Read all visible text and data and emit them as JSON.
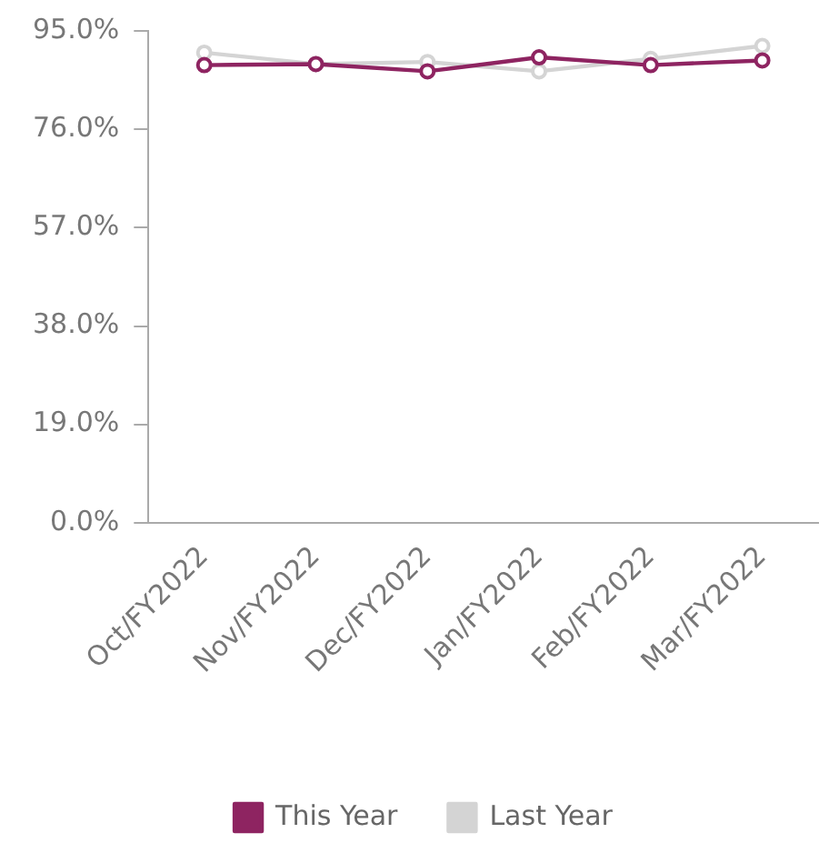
{
  "chart_data": {
    "type": "line",
    "categories": [
      "Oct/FY2022",
      "Nov/FY2022",
      "Dec/FY2022",
      "Jan/FY2022",
      "Feb/FY2022",
      "Mar/FY2022"
    ],
    "series": [
      {
        "name": "This Year",
        "color": "#8e2461",
        "values": [
          88.4,
          88.6,
          87.2,
          89.9,
          88.4,
          89.3
        ]
      },
      {
        "name": "Last Year",
        "color": "#d4d4d4",
        "values": [
          90.8,
          88.6,
          89.0,
          87.2,
          89.6,
          92.1
        ]
      }
    ],
    "ylim": [
      0,
      95
    ],
    "yticks": [
      {
        "value": 0,
        "label": "0.0%"
      },
      {
        "value": 19,
        "label": "19.0%"
      },
      {
        "value": 38,
        "label": "38.0%"
      },
      {
        "value": 57,
        "label": "57.0%"
      },
      {
        "value": 76,
        "label": "76.0%"
      },
      {
        "value": 95,
        "label": "95.0%"
      }
    ],
    "grid": false,
    "legend": "bottom",
    "marker": "circle",
    "line_style": "solid"
  }
}
